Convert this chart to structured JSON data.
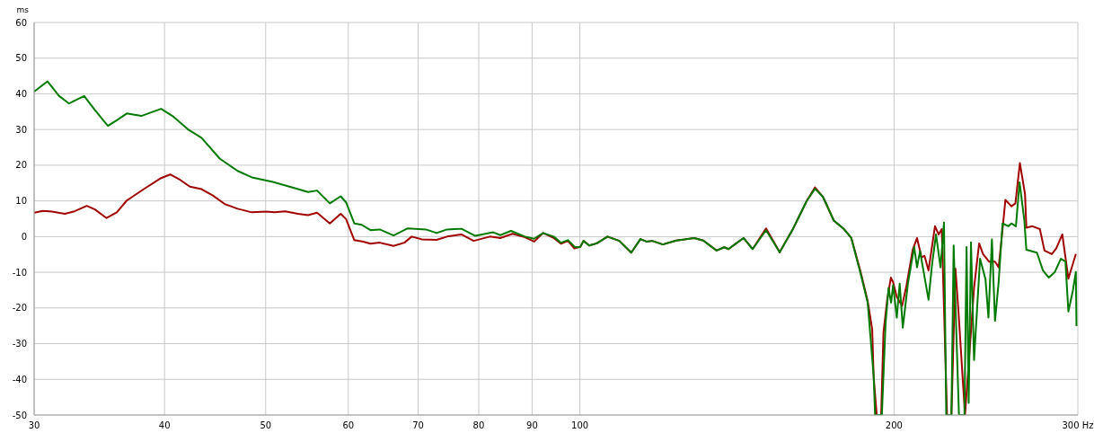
{
  "chart_data": {
    "type": "line",
    "ylabel": "ms",
    "log": "x",
    "grid": true,
    "marker": "none",
    "line_style": "solid",
    "xlim": [
      30,
      300
    ],
    "xticks": [
      30,
      40,
      50,
      60,
      70,
      80,
      90,
      100,
      200,
      {
        "value": 300,
        "label": "300 Hz"
      }
    ],
    "ylim": [
      -50,
      60
    ],
    "yticks": [
      -50,
      -40,
      -30,
      -20,
      -10,
      0,
      10,
      20,
      30,
      40,
      50,
      60
    ],
    "series": [
      {
        "color": "#a00000",
        "x": [
          30,
          30.6,
          31.2,
          32.1,
          32.8,
          33.7,
          34.3,
          35.2,
          36.0,
          36.8,
          38.3,
          39.7,
          40.5,
          41.4,
          42.3,
          43.4,
          44.5,
          45.7,
          47.0,
          48.5,
          50.0,
          51.0,
          52.2,
          53.7,
          54.9,
          56.0,
          57.6,
          59.0,
          59.7,
          60.8,
          62.0,
          63.0,
          64.3,
          66.3,
          67.9,
          69.0,
          70.6,
          72.9,
          74.6,
          77.0,
          79.1,
          82.0,
          83.9,
          86.2,
          88.6,
          90.4,
          92.2,
          94.4,
          95.9,
          97.4,
          98.8,
          100.1,
          100.8,
          102.1,
          103.8,
          106.3,
          109.1,
          112.0,
          114.3,
          115.8,
          117.3,
          120.1,
          123.7,
          128.7,
          131.3,
          135.2,
          137.5,
          138.8,
          141.2,
          143.5,
          146.4,
          150.8,
          155.4,
          160.0,
          164.9,
          168.0,
          171.0,
          175.1,
          179.1,
          182.0,
          185.6,
          188.7,
          190.6,
          191.2,
          192.5,
          194.4,
          195.4,
          197.0,
          198.6,
          199.6,
          201.2,
          203.6,
          205.6,
          208.4,
          210.4,
          212.5,
          213.9,
          215.8,
          218.9,
          220.7,
          222.2,
          224.8,
          227.0,
          229.0,
          230.5,
          233.9,
          238.6,
          241.3,
          243.4,
          246.6,
          249.9,
          251.9,
          254.1,
          255.7,
          259.1,
          261.4,
          264.0,
          267.0,
          267.8,
          271.4,
          275.9,
          278.7,
          283.3,
          286.1,
          289.9,
          293.8,
          298.7
        ],
        "values": [
          6.7,
          7.2,
          7.0,
          6.4,
          7.1,
          8.6,
          7.6,
          5.2,
          6.8,
          10.1,
          13.5,
          16.4,
          17.4,
          15.9,
          14.0,
          13.3,
          11.5,
          9.1,
          7.8,
          6.8,
          7.0,
          6.8,
          7.1,
          6.4,
          6.0,
          6.7,
          3.7,
          6.4,
          4.9,
          -1.0,
          -1.4,
          -2.0,
          -1.7,
          -2.6,
          -1.7,
          0,
          -0.8,
          -0.9,
          0,
          0.6,
          -1.2,
          0,
          -0.4,
          0.8,
          -0.2,
          -1.4,
          1.0,
          -0.4,
          -2.0,
          -1.2,
          -3.3,
          -2.9,
          -1.2,
          -2.5,
          -1.9,
          0,
          -1.2,
          -4.5,
          -0.7,
          -1.4,
          -1.2,
          -2.2,
          -1.1,
          -0.4,
          -1.1,
          -3.9,
          -3.0,
          -3.5,
          -1.9,
          -0.4,
          -3.5,
          2.3,
          -4.4,
          2.1,
          9.9,
          13.8,
          11.1,
          4.5,
          2.1,
          -0.4,
          -9.4,
          -18.1,
          -26,
          -39.3,
          -50,
          -50,
          -26.8,
          -17.7,
          -11.5,
          -12.8,
          -16.9,
          -19.4,
          -13.6,
          -3.7,
          -0.4,
          -5.8,
          -5.4,
          -9.5,
          2.9,
          0.6,
          2.1,
          -50,
          -50,
          -9,
          -20.6,
          -50,
          -14.4,
          -1.9,
          -4.9,
          -7,
          -7,
          -8.6,
          2.1,
          10.3,
          8.5,
          9.3,
          20.6,
          11.9,
          2.5,
          2.9,
          2.1,
          -3.9,
          -4.9,
          -3.3,
          0.6,
          -11.8,
          -4.9
        ]
      },
      {
        "color": "#007a00",
        "x": [
          30,
          30.9,
          31.7,
          32.4,
          33.5,
          34.3,
          35.3,
          36.0,
          36.8,
          38.0,
          39.7,
          40.8,
          42.1,
          43.4,
          45.2,
          47.0,
          48.5,
          50.8,
          53.7,
          54.9,
          56.0,
          57.6,
          59.0,
          59.7,
          60.8,
          61.8,
          63.0,
          64.3,
          66.3,
          68.4,
          71.2,
          72.9,
          74.6,
          77.0,
          79.4,
          82.6,
          83.9,
          85.9,
          88.6,
          90.4,
          92.2,
          94.4,
          95.9,
          97.4,
          98.9,
          100.1,
          100.8,
          102.1,
          103.8,
          106.3,
          109.1,
          112.0,
          114.3,
          115.8,
          117.3,
          120.1,
          123.7,
          128.7,
          131.3,
          135.2,
          137.5,
          138.8,
          141.2,
          143.5,
          146.4,
          150.8,
          155.4,
          160.0,
          164.9,
          168.0,
          171.0,
          175.1,
          179.1,
          182.0,
          185.6,
          188.7,
          191.2,
          191.8,
          194.7,
          196.3,
          197.6,
          198.7,
          199.6,
          201.2,
          202.5,
          203.9,
          206.3,
          209.1,
          210.4,
          211.8,
          213.5,
          215.8,
          217.5,
          219.4,
          221.6,
          223.3,
          224.4,
          227.0,
          228.1,
          229.6,
          230.8,
          233.6,
          234.7,
          235.8,
          237.0,
          238.6,
          241.8,
          244.7,
          246.3,
          248.2,
          249.9,
          251.9,
          254.1,
          257.4,
          259.1,
          261.7,
          263.8,
          266.6,
          267.8,
          274.1,
          277.8,
          281.4,
          285.2,
          289.0,
          291.9,
          293.8,
          296.7,
          298.7,
          299.1
        ],
        "values": [
          40.6,
          43.5,
          39.4,
          37.3,
          39.4,
          35.5,
          31.0,
          32.6,
          34.5,
          33.8,
          35.8,
          33.6,
          30.1,
          27.7,
          21.8,
          18.4,
          16.6,
          15.3,
          13.3,
          12.5,
          12.9,
          9.3,
          11.3,
          9.6,
          3.7,
          3.3,
          1.8,
          2.0,
          0.3,
          2.3,
          2.0,
          1.0,
          2.0,
          2.2,
          0.2,
          1.2,
          0.4,
          1.6,
          0,
          -0.6,
          1.0,
          0,
          -1.7,
          -1.0,
          -2.9,
          -2.9,
          -1.2,
          -2.5,
          -1.9,
          0,
          -1.2,
          -4.5,
          -0.7,
          -1.4,
          -1.2,
          -2.2,
          -1.1,
          -0.4,
          -1.1,
          -3.9,
          -3.0,
          -3.5,
          -1.9,
          -0.4,
          -3.5,
          1.8,
          -4.4,
          2.1,
          9.9,
          13.4,
          11.1,
          4.5,
          2.1,
          -0.4,
          -9.9,
          -18.5,
          -39,
          -50,
          -50,
          -24.3,
          -14.4,
          -18.5,
          -13.6,
          -22.7,
          -13.2,
          -25.5,
          -12.8,
          -2.9,
          -8.6,
          -4.1,
          -9.9,
          -17.7,
          -7.8,
          0.6,
          -8.6,
          3.9,
          -50,
          -50,
          -2.5,
          -29.2,
          -50,
          -50,
          -2.9,
          -46.6,
          -1.6,
          -34.6,
          -6.2,
          -11.9,
          -22.7,
          -0.8,
          -23.6,
          -12.8,
          3.7,
          2.9,
          3.7,
          2.9,
          15.2,
          4.5,
          -3.7,
          -4.5,
          -9.5,
          -11.5,
          -9.9,
          -6.2,
          -7,
          -21,
          -15.2,
          -9.9,
          -25.1
        ]
      }
    ]
  }
}
